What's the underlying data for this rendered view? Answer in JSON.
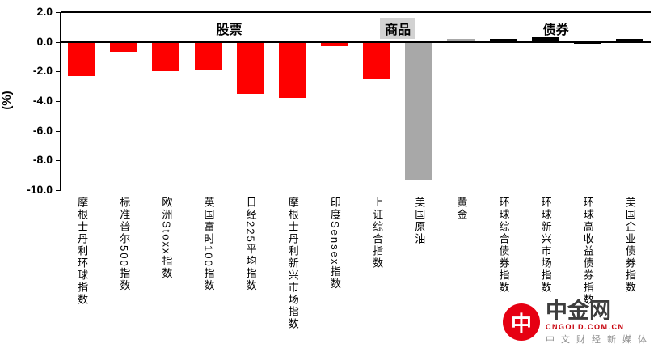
{
  "chart_data": {
    "type": "bar",
    "title": "",
    "ylabel": "(%)",
    "ylim": [
      -10.0,
      2.0
    ],
    "yticks": [
      "2.0",
      "0.0",
      "-2.0",
      "-4.0",
      "-6.0",
      "-8.0",
      "-10.0"
    ],
    "grid": false,
    "legend": "none",
    "categories": [
      "摩根士丹利环球指数",
      "标准普尔500指数",
      "欧洲Stoxx指数",
      "英国富时100指数",
      "日经225平均指数",
      "摩根士丹利新兴市场指数",
      "印度Sensex指数",
      "上证综合指数",
      "美国原油",
      "黄金",
      "环球综合债券指数",
      "环球新兴市场指数",
      "环球高收益债券指数",
      "美国企业债券指数"
    ],
    "values": [
      -2.3,
      -0.7,
      -2.0,
      -1.9,
      -3.5,
      -3.8,
      -0.3,
      -2.5,
      -9.3,
      0.1,
      0.1,
      0.2,
      -0.1,
      0.1
    ],
    "bar_colors": [
      "#fe0000",
      "#fe0000",
      "#fe0000",
      "#fe0000",
      "#fe0000",
      "#fe0000",
      "#fe0000",
      "#fe0000",
      "#a8a8a8",
      "#a8a8a8",
      "#000000",
      "#000000",
      "#000000",
      "#000000"
    ],
    "sections": [
      {
        "label": "股票",
        "span": [
          0,
          7
        ],
        "center_slot": 4.0,
        "bg": "none"
      },
      {
        "label": "商品",
        "span": [
          8,
          9
        ],
        "center_slot": 8.0,
        "bg": "#d2d2d2"
      },
      {
        "label": "债券",
        "span": [
          10,
          13
        ],
        "center_slot": 11.75,
        "bg": "none"
      }
    ]
  },
  "watermark": {
    "brand": "中金网",
    "logo_glyph": "中",
    "domain": "CNGOLD.COM.CN",
    "tagline": "中文财经新媒体"
  }
}
